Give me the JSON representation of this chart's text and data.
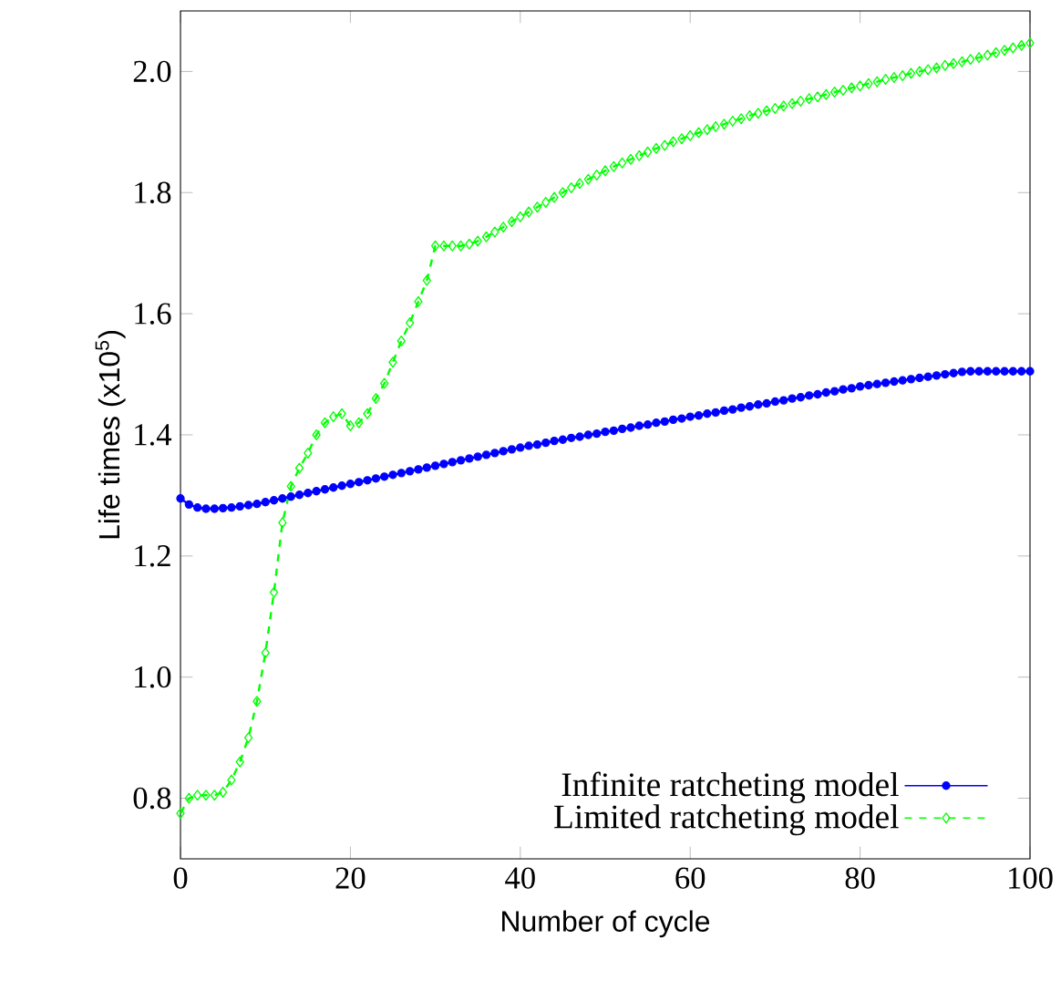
{
  "chart_data": {
    "type": "line",
    "xlabel": "Number of cycle",
    "ylabel": "Life times (x10$^{5}$)",
    "x": [
      0,
      1,
      2,
      3,
      4,
      5,
      6,
      7,
      8,
      9,
      10,
      11,
      12,
      13,
      14,
      15,
      16,
      17,
      18,
      19,
      20,
      21,
      22,
      23,
      24,
      25,
      26,
      27,
      28,
      29,
      30,
      31,
      32,
      33,
      34,
      35,
      36,
      37,
      38,
      39,
      40,
      41,
      42,
      43,
      44,
      45,
      46,
      47,
      48,
      49,
      50,
      51,
      52,
      53,
      54,
      55,
      56,
      57,
      58,
      59,
      60,
      61,
      62,
      63,
      64,
      65,
      66,
      67,
      68,
      69,
      70,
      71,
      72,
      73,
      74,
      75,
      76,
      77,
      78,
      79,
      80,
      81,
      82,
      83,
      84,
      85,
      86,
      87,
      88,
      89,
      90,
      91,
      92,
      93,
      94,
      95,
      96,
      97,
      98,
      99,
      100
    ],
    "series": [
      {
        "name": "Infinite ratcheting model",
        "color": "#0000ff",
        "marker": "circle",
        "line_style": "solid",
        "values": [
          1.295,
          1.285,
          1.28,
          1.278,
          1.278,
          1.279,
          1.28,
          1.282,
          1.284,
          1.286,
          1.289,
          1.292,
          1.295,
          1.298,
          1.301,
          1.304,
          1.307,
          1.31,
          1.313,
          1.316,
          1.319,
          1.322,
          1.325,
          1.328,
          1.331,
          1.334,
          1.337,
          1.34,
          1.343,
          1.346,
          1.349,
          1.352,
          1.355,
          1.358,
          1.361,
          1.364,
          1.367,
          1.37,
          1.373,
          1.376,
          1.379,
          1.382,
          1.384,
          1.387,
          1.39,
          1.392,
          1.395,
          1.397,
          1.4,
          1.402,
          1.405,
          1.407,
          1.41,
          1.412,
          1.415,
          1.417,
          1.42,
          1.422,
          1.425,
          1.427,
          1.43,
          1.432,
          1.435,
          1.437,
          1.44,
          1.442,
          1.445,
          1.447,
          1.45,
          1.452,
          1.455,
          1.457,
          1.46,
          1.462,
          1.465,
          1.467,
          1.47,
          1.472,
          1.475,
          1.477,
          1.48,
          1.482,
          1.484,
          1.486,
          1.488,
          1.49,
          1.492,
          1.494,
          1.496,
          1.498,
          1.5,
          1.502,
          1.504,
          1.505,
          1.505,
          1.505,
          1.505,
          1.505,
          1.505,
          1.505,
          1.505
        ]
      },
      {
        "name": "Limited ratcheting model",
        "color": "#00ff00",
        "marker": "diamond",
        "line_style": "dashed",
        "values": [
          0.775,
          0.8,
          0.805,
          0.805,
          0.805,
          0.81,
          0.83,
          0.86,
          0.9,
          0.96,
          1.04,
          1.14,
          1.255,
          1.315,
          1.345,
          1.37,
          1.4,
          1.42,
          1.43,
          1.435,
          1.415,
          1.42,
          1.435,
          1.46,
          1.485,
          1.52,
          1.555,
          1.585,
          1.62,
          1.655,
          1.712,
          1.712,
          1.712,
          1.712,
          1.715,
          1.72,
          1.727,
          1.735,
          1.743,
          1.752,
          1.76,
          1.768,
          1.776,
          1.784,
          1.792,
          1.8,
          1.808,
          1.815,
          1.822,
          1.829,
          1.836,
          1.843,
          1.849,
          1.855,
          1.861,
          1.867,
          1.873,
          1.878,
          1.884,
          1.889,
          1.894,
          1.899,
          1.904,
          1.909,
          1.913,
          1.918,
          1.922,
          1.927,
          1.931,
          1.935,
          1.939,
          1.943,
          1.947,
          1.951,
          1.955,
          1.958,
          1.962,
          1.966,
          1.969,
          1.973,
          1.976,
          1.98,
          1.983,
          1.987,
          1.99,
          1.993,
          1.997,
          2.0,
          2.003,
          2.006,
          2.01,
          2.013,
          2.016,
          2.02,
          2.023,
          2.027,
          2.031,
          2.035,
          2.039,
          2.043,
          2.047
        ]
      }
    ],
    "xlim": [
      0,
      100
    ],
    "xticks": [
      0,
      20,
      40,
      60,
      80,
      100
    ],
    "ylim": [
      0.7,
      2.1
    ],
    "yticks": [
      {
        "value": 0.8,
        "label": "0.8"
      },
      {
        "value": 1.0,
        "label": "1.0"
      },
      {
        "value": 1.2,
        "label": "1.2"
      },
      {
        "value": 1.4,
        "label": "1.4"
      },
      {
        "value": 1.6,
        "label": "1.6"
      },
      {
        "value": 1.8,
        "label": "1.8"
      },
      {
        "value": 2.0,
        "label": "2.0"
      }
    ],
    "grid": false,
    "legend": "bottom right"
  }
}
